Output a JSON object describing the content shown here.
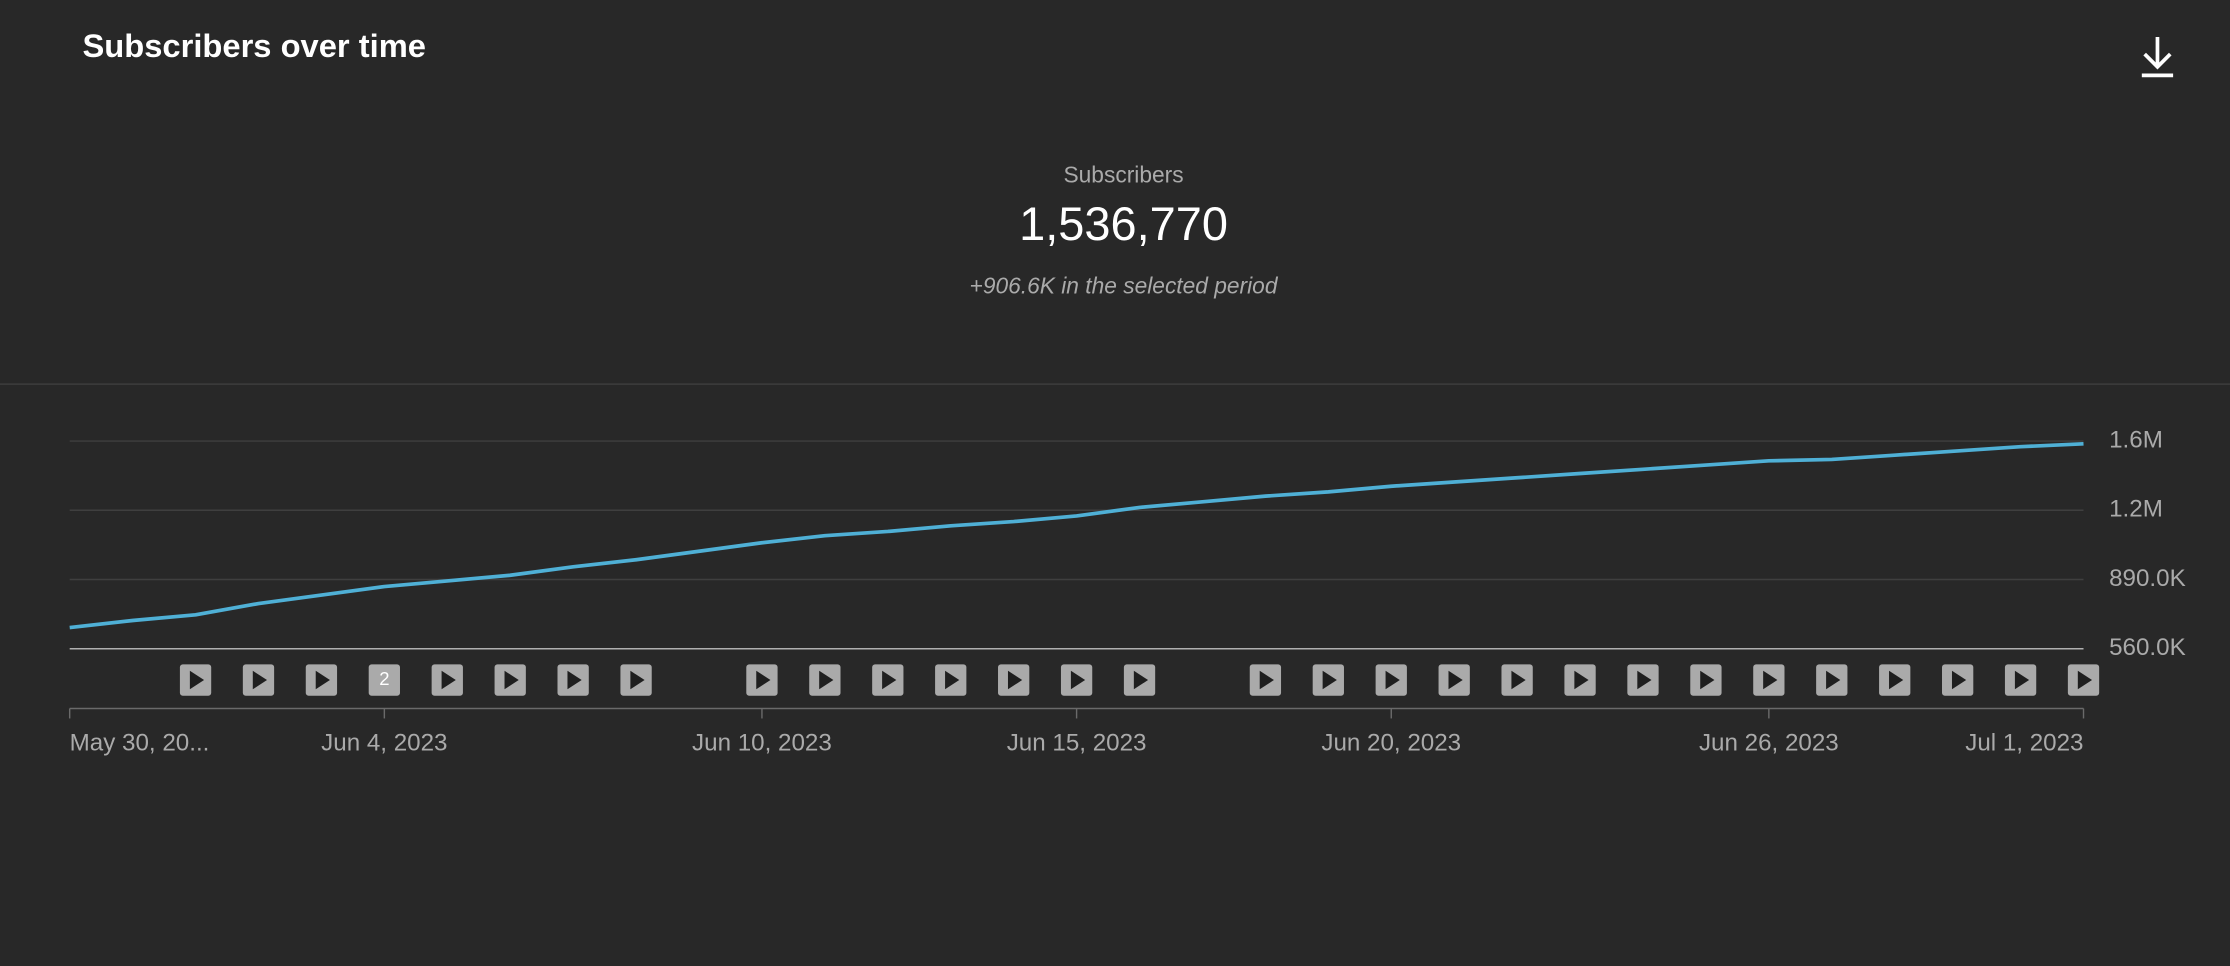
{
  "chart_data": {
    "type": "line",
    "title": "Subscribers over time",
    "metric_label": "Subscribers",
    "metric_value": "1,536,770",
    "metric_change": "+906.6K in the selected period",
    "x": [
      "2023-05-30",
      "2023-05-31",
      "2023-06-01",
      "2023-06-02",
      "2023-06-03",
      "2023-06-04",
      "2023-06-05",
      "2023-06-06",
      "2023-06-07",
      "2023-06-08",
      "2023-06-09",
      "2023-06-10",
      "2023-06-11",
      "2023-06-12",
      "2023-06-13",
      "2023-06-14",
      "2023-06-15",
      "2023-06-16",
      "2023-06-17",
      "2023-06-18",
      "2023-06-19",
      "2023-06-20",
      "2023-06-21",
      "2023-06-22",
      "2023-06-23",
      "2023-06-24",
      "2023-06-25",
      "2023-06-26",
      "2023-06-27",
      "2023-06-28",
      "2023-06-29",
      "2023-06-30",
      "2023-07-01"
    ],
    "series": [
      {
        "name": "Subscribers",
        "color": "#4fb0d6",
        "values": [
          661000,
          694700,
          721600,
          775500,
          815900,
          856300,
          883300,
          910200,
          950600,
          984300,
          1024700,
          1065100,
          1098800,
          1119000,
          1145900,
          1166100,
          1193100,
          1233500,
          1260400,
          1287400,
          1307600,
          1334500,
          1354700,
          1374900,
          1395100,
          1415300,
          1435500,
          1455700,
          1462400,
          1482600,
          1502900,
          1523000,
          1536770
        ]
      }
    ],
    "xlim": [
      "2023-05-30",
      "2023-07-01"
    ],
    "xticks": [
      {
        "value": "2023-05-30",
        "label": "May 30, 20..."
      },
      {
        "value": "2023-06-04",
        "label": "Jun 4, 2023"
      },
      {
        "value": "2023-06-10",
        "label": "Jun 10, 2023"
      },
      {
        "value": "2023-06-15",
        "label": "Jun 15, 2023"
      },
      {
        "value": "2023-06-20",
        "label": "Jun 20, 2023"
      },
      {
        "value": "2023-06-26",
        "label": "Jun 26, 2023"
      },
      {
        "value": "2023-07-01",
        "label": "Jul 1, 2023"
      }
    ],
    "ylim": [
      560000,
      1550000
    ],
    "yticks": [
      {
        "value": 560000,
        "label": "560.0K"
      },
      {
        "value": 890000,
        "label": "890.0K"
      },
      {
        "value": 1220000,
        "label": "1.2M"
      },
      {
        "value": 1550000,
        "label": "1.6M"
      }
    ],
    "grid": true,
    "videos": [
      {
        "date": "2023-06-01"
      },
      {
        "date": "2023-06-02"
      },
      {
        "date": "2023-06-03"
      },
      {
        "date": "2023-06-04",
        "label": "2"
      },
      {
        "date": "2023-06-05"
      },
      {
        "date": "2023-06-06"
      },
      {
        "date": "2023-06-07"
      },
      {
        "date": "2023-06-08"
      },
      {
        "date": "2023-06-10"
      },
      {
        "date": "2023-06-11"
      },
      {
        "date": "2023-06-12"
      },
      {
        "date": "2023-06-13"
      },
      {
        "date": "2023-06-14"
      },
      {
        "date": "2023-06-15"
      },
      {
        "date": "2023-06-16"
      },
      {
        "date": "2023-06-18"
      },
      {
        "date": "2023-06-19"
      },
      {
        "date": "2023-06-20"
      },
      {
        "date": "2023-06-21"
      },
      {
        "date": "2023-06-22"
      },
      {
        "date": "2023-06-23"
      },
      {
        "date": "2023-06-24"
      },
      {
        "date": "2023-06-25"
      },
      {
        "date": "2023-06-26"
      },
      {
        "date": "2023-06-27"
      },
      {
        "date": "2023-06-28"
      },
      {
        "date": "2023-06-29"
      },
      {
        "date": "2023-06-30"
      },
      {
        "date": "2023-07-01"
      }
    ]
  }
}
